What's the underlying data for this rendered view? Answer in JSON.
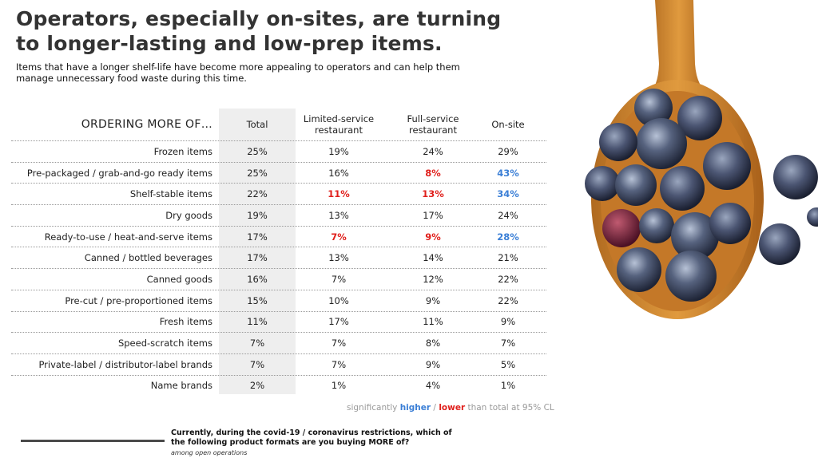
{
  "title": "Operators, especially on-sites, are turning to longer-lasting and low-prep items.",
  "subtitle": "Items that have a longer shelf-life have become more appealing to operators and can help them manage unnecessary food waste during this time.",
  "table": {
    "header": {
      "label": "ORDERING MORE OF…",
      "total": "Total",
      "lsr": "Limited-service restaurant",
      "fsr": "Full-service restaurant",
      "onsite": "On-site"
    },
    "rows": [
      {
        "label": "Frozen items",
        "total": "25%",
        "lsr": "19%",
        "fsr": "24%",
        "onsite": "29%"
      },
      {
        "label": "Pre-packaged / grab-and-go ready items",
        "total": "25%",
        "lsr": "16%",
        "fsr": "8%",
        "onsite": "43%"
      },
      {
        "label": "Shelf-stable items",
        "total": "22%",
        "lsr": "11%",
        "fsr": "13%",
        "onsite": "34%"
      },
      {
        "label": "Dry goods",
        "total": "19%",
        "lsr": "13%",
        "fsr": "17%",
        "onsite": "24%"
      },
      {
        "label": "Ready-to-use / heat-and-serve items",
        "total": "17%",
        "lsr": "7%",
        "fsr": "9%",
        "onsite": "28%"
      },
      {
        "label": "Canned / bottled beverages",
        "total": "17%",
        "lsr": "13%",
        "fsr": "14%",
        "onsite": "21%"
      },
      {
        "label": "Canned goods",
        "total": "16%",
        "lsr": "7%",
        "fsr": "12%",
        "onsite": "22%"
      },
      {
        "label": "Pre-cut / pre-proportioned items",
        "total": "15%",
        "lsr": "10%",
        "fsr": "9%",
        "onsite": "22%"
      },
      {
        "label": "Fresh items",
        "total": "11%",
        "lsr": "17%",
        "fsr": "11%",
        "onsite": "9%"
      },
      {
        "label": "Speed-scratch items",
        "total": "7%",
        "lsr": "7%",
        "fsr": "8%",
        "onsite": "7%"
      },
      {
        "label": "Private-label / distributor-label brands",
        "total": "7%",
        "lsr": "7%",
        "fsr": "9%",
        "onsite": "5%"
      },
      {
        "label": "Name brands",
        "total": "2%",
        "lsr": "1%",
        "fsr": "4%",
        "onsite": "1%"
      }
    ],
    "significance": {
      "higher": [
        "1.onsite",
        "2.onsite",
        "4.onsite"
      ],
      "lower": [
        "1.fsr",
        "2.lsr",
        "2.fsr",
        "4.lsr",
        "4.fsr"
      ]
    }
  },
  "legend": {
    "prefix": "significantly",
    "higher": "higher",
    "sep": "/",
    "lower": "lower",
    "suffix": "than total at 95% CL"
  },
  "colors": {
    "higher": "#3b7fd6",
    "lower": "#e0201c",
    "total_column_bg": "#eeeeee"
  },
  "footer": {
    "question": "Currently, during the covid-19 / coronavirus restrictions, which of the following product formats are you buying MORE of?",
    "base": "among open operations"
  },
  "image": {
    "subject": "wooden-spoon-with-blueberries"
  }
}
